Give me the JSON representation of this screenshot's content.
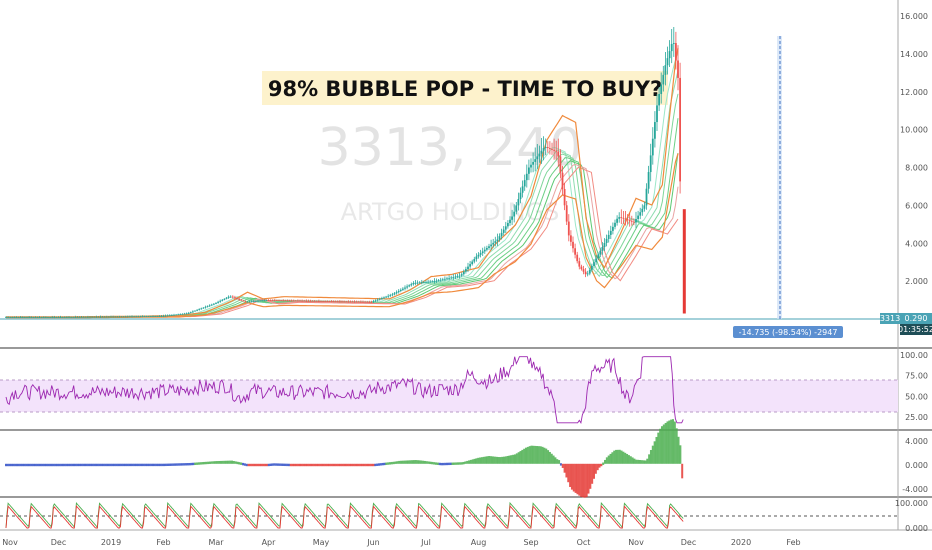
{
  "chart_data": {
    "type": "line",
    "headline": "98% BUBBLE POP - TIME TO BUY?",
    "watermark": {
      "symbol_line": "3313, 240",
      "name": "ARTGO HOLDINGS"
    },
    "price_axis_ticks": [
      "16.000",
      "14.000",
      "12.000",
      "10.000",
      "8.000",
      "6.000",
      "4.000",
      "2.000"
    ],
    "price_axis_values": [
      16,
      14,
      12,
      10,
      8,
      6,
      4,
      2
    ],
    "last_price_label": "3313",
    "last_price": "0.290",
    "countdown": "01:35:52",
    "measure_label": "-14.735 (-98.54%) -2947",
    "time_labels": [
      "Nov",
      "Dec",
      "2019",
      "Feb",
      "Mar",
      "Apr",
      "May",
      "Jun",
      "Jul",
      "Aug",
      "Sep",
      "Oct",
      "Nov",
      "Dec",
      "2020",
      "Feb"
    ],
    "time_positions": [
      0,
      1,
      2,
      3,
      4,
      5,
      6,
      7,
      8,
      9,
      10,
      11,
      12,
      13,
      14,
      15
    ],
    "price_series": [
      {
        "t": 0,
        "v": 0.1
      },
      {
        "t": 1,
        "v": 0.1
      },
      {
        "t": 2,
        "v": 0.12
      },
      {
        "t": 3,
        "v": 0.15
      },
      {
        "t": 3.5,
        "v": 0.3
      },
      {
        "t": 4,
        "v": 0.8
      },
      {
        "t": 4.3,
        "v": 1.2
      },
      {
        "t": 4.6,
        "v": 0.9
      },
      {
        "t": 5,
        "v": 1.0
      },
      {
        "t": 6,
        "v": 0.95
      },
      {
        "t": 7,
        "v": 0.9
      },
      {
        "t": 7.4,
        "v": 1.3
      },
      {
        "t": 7.8,
        "v": 1.9
      },
      {
        "t": 8.2,
        "v": 2.0
      },
      {
        "t": 8.7,
        "v": 2.3
      },
      {
        "t": 9,
        "v": 3.3
      },
      {
        "t": 9.4,
        "v": 4.2
      },
      {
        "t": 9.7,
        "v": 5.5
      },
      {
        "t": 10,
        "v": 8.0
      },
      {
        "t": 10.3,
        "v": 9.1
      },
      {
        "t": 10.55,
        "v": 8.8
      },
      {
        "t": 10.75,
        "v": 4.5
      },
      {
        "t": 10.95,
        "v": 2.8
      },
      {
        "t": 11.1,
        "v": 2.3
      },
      {
        "t": 11.4,
        "v": 3.8
      },
      {
        "t": 11.7,
        "v": 5.4
      },
      {
        "t": 12,
        "v": 5.1
      },
      {
        "t": 12.2,
        "v": 6.0
      },
      {
        "t": 12.45,
        "v": 11.5
      },
      {
        "t": 12.6,
        "v": 13.4
      },
      {
        "t": 12.75,
        "v": 14.8
      },
      {
        "t": 12.85,
        "v": 12.5
      },
      {
        "t": 12.92,
        "v": 0.29
      }
    ],
    "rsi_ticks": [
      "100.00",
      "75.00",
      "50.00",
      "25.00"
    ],
    "rsi_values": [
      100,
      75,
      50,
      25
    ],
    "macd_ticks": [
      "4.000",
      "0.000",
      "-4.000"
    ],
    "macd_values": [
      4,
      0,
      -4
    ],
    "stoch_ticks": [
      "100.000",
      "0.000"
    ],
    "stoch_values": [
      100,
      0
    ]
  }
}
